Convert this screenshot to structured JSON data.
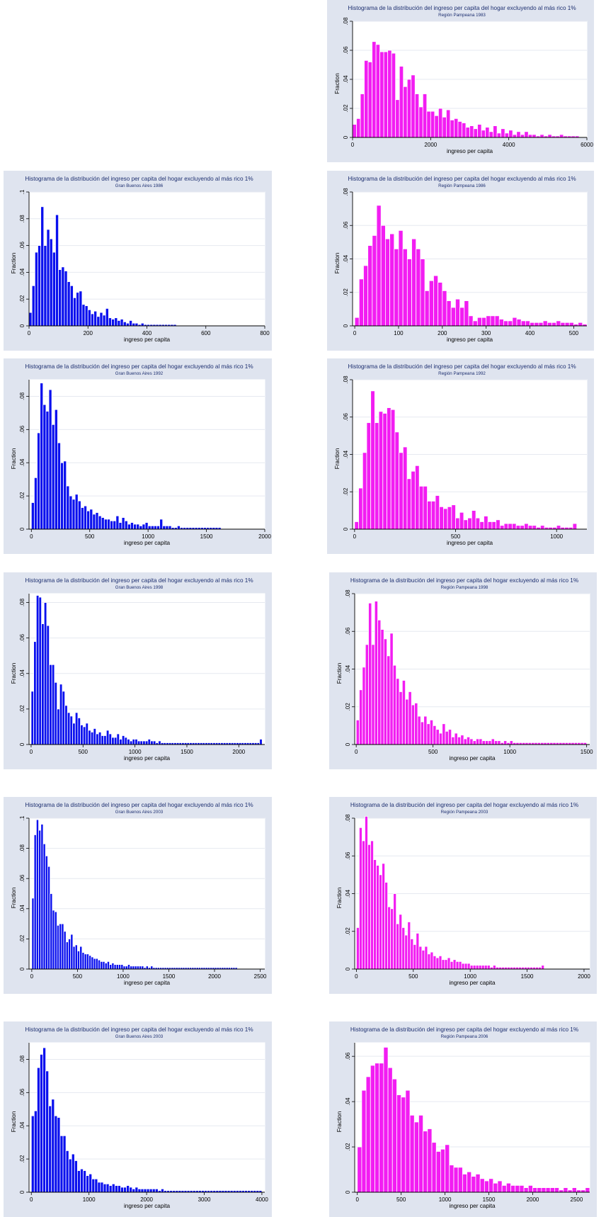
{
  "colors": {
    "blue": "#0a10ee",
    "magenta": "#f21df2",
    "panel_bg": "#dfe4ef",
    "title_text": "#1d2f70"
  },
  "common": {
    "title": "Histograma de la distribución del ingreso per capita del hogar excluyendo al más rico 1%",
    "xlabel": "ingreso per capita",
    "ylabel": "Fraction"
  },
  "chart_data": [
    {
      "id": "p83",
      "type": "bar",
      "color": "magenta",
      "subtitle": "Región Pampeana 1983",
      "xlim": [
        0,
        6000
      ],
      "ylim": [
        0,
        0.08
      ],
      "yticks": [
        0,
        0.02,
        0.04,
        0.06,
        0.08
      ],
      "ytick_labels": [
        "0",
        ".02",
        ".04",
        ".06",
        ".08"
      ],
      "xticks": [
        0,
        2000,
        4000,
        6000
      ],
      "xtick_labels": [
        "0",
        "2000",
        "4000",
        "6000"
      ],
      "bin_width": 100,
      "values": [
        0.009,
        0.013,
        0.03,
        0.053,
        0.052,
        0.066,
        0.064,
        0.059,
        0.059,
        0.06,
        0.058,
        0.026,
        0.049,
        0.035,
        0.04,
        0.043,
        0.03,
        0.021,
        0.03,
        0.018,
        0.018,
        0.015,
        0.02,
        0.014,
        0.019,
        0.012,
        0.013,
        0.011,
        0.01,
        0.007,
        0.008,
        0.006,
        0.009,
        0.005,
        0.007,
        0.004,
        0.008,
        0.003,
        0.006,
        0.003,
        0.005,
        0.002,
        0.004,
        0.002,
        0.004,
        0.002,
        0.002,
        0.001,
        0.002,
        0.001,
        0.002,
        0.001,
        0.001,
        0.002,
        0.001,
        0.001,
        0.001,
        0.001
      ]
    },
    {
      "id": "g86",
      "type": "bar",
      "color": "blue",
      "subtitle": "Gran Buenos Aires 1986",
      "xlim": [
        0,
        800
      ],
      "ylim": [
        0,
        0.1
      ],
      "yticks": [
        0,
        0.02,
        0.04,
        0.06,
        0.08,
        0.1
      ],
      "ytick_labels": [
        "0",
        ".02",
        ".04",
        ".06",
        ".08",
        ".1"
      ],
      "xticks": [
        0,
        200,
        400,
        600,
        800
      ],
      "xtick_labels": [
        "0",
        "200",
        "400",
        "600",
        "800"
      ],
      "bin_width": 10,
      "values": [
        0.01,
        0.03,
        0.055,
        0.06,
        0.089,
        0.06,
        0.072,
        0.065,
        0.055,
        0.083,
        0.042,
        0.044,
        0.041,
        0.033,
        0.03,
        0.021,
        0.025,
        0.026,
        0.016,
        0.015,
        0.012,
        0.009,
        0.011,
        0.007,
        0.01,
        0.008,
        0.013,
        0.006,
        0.005,
        0.006,
        0.004,
        0.005,
        0.003,
        0.002,
        0.004,
        0.002,
        0.002,
        0.001,
        0.002,
        0.001,
        0.001,
        0.001,
        0.001,
        0.001,
        0.001,
        0.001,
        0.001,
        0.001,
        0.001,
        0.001
      ]
    },
    {
      "id": "p86",
      "type": "bar",
      "color": "magenta",
      "subtitle": "Región Pampeana 1986",
      "xlim": [
        -5,
        530
      ],
      "ylim": [
        0,
        0.08
      ],
      "yticks": [
        0,
        0.02,
        0.04,
        0.06,
        0.08
      ],
      "ytick_labels": [
        "0",
        ".02",
        ".04",
        ".06",
        ".08"
      ],
      "xticks": [
        0,
        100,
        200,
        300,
        400,
        500
      ],
      "xtick_labels": [
        "0",
        "100",
        "200",
        "300",
        "400",
        "500"
      ],
      "bin_width": 10,
      "values": [
        0.005,
        0.028,
        0.036,
        0.048,
        0.054,
        0.072,
        0.06,
        0.052,
        0.055,
        0.046,
        0.057,
        0.046,
        0.04,
        0.052,
        0.046,
        0.04,
        0.021,
        0.027,
        0.03,
        0.026,
        0.021,
        0.015,
        0.011,
        0.016,
        0.011,
        0.015,
        0.006,
        0.003,
        0.005,
        0.005,
        0.006,
        0.006,
        0.006,
        0.004,
        0.003,
        0.003,
        0.005,
        0.004,
        0.003,
        0.003,
        0.002,
        0.002,
        0.002,
        0.003,
        0.002,
        0.002,
        0.003,
        0.002,
        0.002,
        0.002,
        0.001,
        0.002,
        0.001
      ]
    },
    {
      "id": "g92",
      "type": "bar",
      "color": "blue",
      "subtitle": "Gran Buenos Aires 1992",
      "xlim": [
        -20,
        2000
      ],
      "ylim": [
        0,
        0.09
      ],
      "yticks": [
        0,
        0.02,
        0.04,
        0.06,
        0.08
      ],
      "ytick_labels": [
        "0",
        ".02",
        ".04",
        ".06",
        ".08"
      ],
      "xticks": [
        0,
        500,
        1000,
        1500,
        2000
      ],
      "xtick_labels": [
        "0",
        "500",
        "1000",
        "1500",
        "2000"
      ],
      "bin_width": 25,
      "values": [
        0.016,
        0.031,
        0.058,
        0.088,
        0.075,
        0.071,
        0.084,
        0.063,
        0.072,
        0.052,
        0.04,
        0.041,
        0.026,
        0.02,
        0.018,
        0.021,
        0.017,
        0.013,
        0.014,
        0.011,
        0.012,
        0.009,
        0.01,
        0.008,
        0.007,
        0.006,
        0.006,
        0.005,
        0.005,
        0.008,
        0.004,
        0.007,
        0.005,
        0.003,
        0.004,
        0.003,
        0.003,
        0.002,
        0.003,
        0.004,
        0.002,
        0.002,
        0.002,
        0.002,
        0.006,
        0.002,
        0.002,
        0.002,
        0.001,
        0.001,
        0.002,
        0.001,
        0.001,
        0.001,
        0.001,
        0.001,
        0.001,
        0.001,
        0.001,
        0.001,
        0.001,
        0.001,
        0.001,
        0.001,
        0.001
      ]
    },
    {
      "id": "p92",
      "type": "bar",
      "color": "magenta",
      "subtitle": "Región Pampeana 1992",
      "xlim": [
        -10,
        1150
      ],
      "ylim": [
        0,
        0.08
      ],
      "yticks": [
        0,
        0.02,
        0.04,
        0.06,
        0.08
      ],
      "ytick_labels": [
        "0",
        ".02",
        ".04",
        ".06",
        ".08"
      ],
      "xticks": [
        0,
        500,
        1000
      ],
      "xtick_labels": [
        "0",
        "500",
        "1000"
      ],
      "bin_width": 20,
      "values": [
        0.004,
        0.022,
        0.041,
        0.057,
        0.074,
        0.057,
        0.063,
        0.062,
        0.065,
        0.064,
        0.052,
        0.041,
        0.044,
        0.027,
        0.031,
        0.034,
        0.023,
        0.023,
        0.015,
        0.015,
        0.018,
        0.012,
        0.011,
        0.012,
        0.013,
        0.006,
        0.009,
        0.005,
        0.006,
        0.01,
        0.006,
        0.004,
        0.007,
        0.004,
        0.004,
        0.005,
        0.002,
        0.003,
        0.003,
        0.003,
        0.002,
        0.002,
        0.003,
        0.002,
        0.002,
        0.001,
        0.002,
        0.001,
        0.001,
        0.001,
        0.002,
        0.001,
        0.001,
        0.001,
        0.003
      ]
    },
    {
      "id": "g98",
      "type": "bar",
      "color": "blue",
      "subtitle": "Gran Buenos Aires 1998",
      "xlim": [
        -20,
        2250
      ],
      "ylim": [
        0,
        0.085
      ],
      "yticks": [
        0,
        0.02,
        0.04,
        0.06,
        0.08
      ],
      "ytick_labels": [
        "0",
        ".02",
        ".04",
        ".06",
        ".08"
      ],
      "xticks": [
        0,
        500,
        1000,
        1500,
        2000
      ],
      "xtick_labels": [
        "0",
        "500",
        "1000",
        "1500",
        "2000"
      ],
      "bin_width": 25,
      "values": [
        0.03,
        0.058,
        0.084,
        0.083,
        0.068,
        0.08,
        0.067,
        0.045,
        0.045,
        0.035,
        0.02,
        0.034,
        0.03,
        0.022,
        0.018,
        0.016,
        0.012,
        0.018,
        0.015,
        0.011,
        0.01,
        0.012,
        0.008,
        0.007,
        0.009,
        0.006,
        0.007,
        0.005,
        0.005,
        0.008,
        0.006,
        0.004,
        0.004,
        0.006,
        0.003,
        0.005,
        0.004,
        0.003,
        0.002,
        0.003,
        0.003,
        0.002,
        0.002,
        0.002,
        0.002,
        0.003,
        0.002,
        0.002,
        0.001,
        0.002,
        0.001,
        0.001,
        0.001,
        0.001,
        0.001,
        0.001,
        0.001,
        0.001,
        0.001,
        0.001,
        0.001,
        0.001,
        0.001,
        0.001,
        0.001,
        0.001,
        0.001,
        0.001,
        0.001,
        0.001,
        0.001,
        0.001,
        0.001,
        0.001,
        0.001,
        0.001,
        0.001,
        0.001,
        0.001,
        0.001,
        0.001,
        0.001,
        0.001,
        0.001,
        0.001,
        0.001,
        0.001,
        0.001,
        0.003
      ]
    },
    {
      "id": "p98",
      "type": "bar",
      "color": "magenta",
      "subtitle": "Región Pampeana 1998",
      "xlim": [
        -10,
        1520
      ],
      "ylim": [
        0,
        0.08
      ],
      "yticks": [
        0,
        0.02,
        0.04,
        0.06,
        0.08
      ],
      "ytick_labels": [
        "0",
        ".02",
        ".04",
        ".06",
        ".08"
      ],
      "xticks": [
        0,
        500,
        1000,
        1500
      ],
      "xtick_labels": [
        "0",
        "500",
        "1000",
        "1500"
      ],
      "bin_width": 20,
      "values": [
        0.013,
        0.029,
        0.041,
        0.053,
        0.075,
        0.053,
        0.076,
        0.066,
        0.061,
        0.056,
        0.047,
        0.059,
        0.042,
        0.035,
        0.028,
        0.034,
        0.024,
        0.028,
        0.021,
        0.022,
        0.015,
        0.012,
        0.015,
        0.011,
        0.013,
        0.01,
        0.008,
        0.006,
        0.011,
        0.007,
        0.008,
        0.004,
        0.006,
        0.004,
        0.005,
        0.003,
        0.004,
        0.003,
        0.002,
        0.003,
        0.003,
        0.002,
        0.002,
        0.002,
        0.003,
        0.002,
        0.002,
        0.001,
        0.002,
        0.001,
        0.002,
        0.001,
        0.001,
        0.001,
        0.001,
        0.001,
        0.001,
        0.001,
        0.001,
        0.001,
        0.001,
        0.001,
        0.001,
        0.001,
        0.001,
        0.001,
        0.001,
        0.001,
        0.001,
        0.001,
        0.001,
        0.001,
        0.001,
        0.001,
        0.001
      ]
    },
    {
      "id": "g03a",
      "type": "bar",
      "color": "blue",
      "subtitle": "Gran Buenos Aires 2003",
      "xlim": [
        -30,
        2550
      ],
      "ylim": [
        0,
        0.1
      ],
      "yticks": [
        0,
        0.02,
        0.04,
        0.06,
        0.08,
        0.1
      ],
      "ytick_labels": [
        "0",
        ".02",
        ".04",
        ".06",
        ".08",
        ".1"
      ],
      "xticks": [
        0,
        500,
        1000,
        1500,
        2000,
        2500
      ],
      "xtick_labels": [
        "0",
        "500",
        "1000",
        "1500",
        "2000",
        "2500"
      ],
      "bin_width": 25,
      "values": [
        0.047,
        0.089,
        0.099,
        0.092,
        0.096,
        0.083,
        0.075,
        0.068,
        0.05,
        0.039,
        0.038,
        0.029,
        0.03,
        0.03,
        0.025,
        0.018,
        0.02,
        0.023,
        0.015,
        0.016,
        0.012,
        0.015,
        0.011,
        0.01,
        0.01,
        0.009,
        0.008,
        0.007,
        0.007,
        0.006,
        0.005,
        0.005,
        0.004,
        0.005,
        0.003,
        0.004,
        0.003,
        0.003,
        0.003,
        0.003,
        0.002,
        0.002,
        0.003,
        0.002,
        0.002,
        0.002,
        0.002,
        0.002,
        0.002,
        0.001,
        0.002,
        0.001,
        0.002,
        0.001,
        0.001,
        0.001,
        0.001,
        0.001,
        0.001,
        0.001,
        0.001,
        0.001,
        0.001,
        0.001,
        0.001,
        0.001,
        0.001,
        0.001,
        0.001,
        0.001,
        0.001,
        0.001,
        0.001,
        0.001,
        0.001,
        0.001,
        0.001,
        0.001,
        0.001,
        0.001,
        0.001,
        0.001,
        0.001,
        0.001,
        0.001,
        0.001,
        0.001,
        0.001,
        0.001,
        0.001
      ]
    },
    {
      "id": "p03",
      "type": "bar",
      "color": "magenta",
      "subtitle": "Región Pampeana 2003",
      "xlim": [
        -15,
        2050
      ],
      "ylim": [
        0,
        0.08
      ],
      "yticks": [
        0,
        0.02,
        0.04,
        0.06,
        0.08
      ],
      "ytick_labels": [
        "0",
        ".02",
        ".04",
        ".06",
        ".08"
      ],
      "xticks": [
        0,
        500,
        1000,
        1500,
        2000
      ],
      "xtick_labels": [
        "0",
        "500",
        "1000",
        "1500",
        "2000"
      ],
      "bin_width": 25,
      "values": [
        0.022,
        0.075,
        0.068,
        0.081,
        0.066,
        0.068,
        0.058,
        0.055,
        0.05,
        0.056,
        0.046,
        0.033,
        0.032,
        0.04,
        0.024,
        0.029,
        0.022,
        0.018,
        0.025,
        0.016,
        0.013,
        0.019,
        0.012,
        0.01,
        0.012,
        0.008,
        0.009,
        0.007,
        0.006,
        0.007,
        0.005,
        0.005,
        0.006,
        0.004,
        0.005,
        0.004,
        0.004,
        0.003,
        0.003,
        0.003,
        0.002,
        0.002,
        0.002,
        0.002,
        0.002,
        0.002,
        0.002,
        0.001,
        0.002,
        0.001,
        0.001,
        0.001,
        0.001,
        0.001,
        0.001,
        0.001,
        0.001,
        0.001,
        0.001,
        0.001,
        0.001,
        0.001,
        0.001,
        0.001,
        0.001,
        0.002
      ]
    },
    {
      "id": "g03b",
      "type": "bar",
      "color": "blue",
      "subtitle": "Gran Buenos Aires 2003",
      "xlim": [
        -40,
        4050
      ],
      "ylim": [
        0,
        0.09
      ],
      "yticks": [
        0,
        0.02,
        0.04,
        0.06,
        0.08
      ],
      "ytick_labels": [
        "0",
        ".02",
        ".04",
        ".06",
        ".08"
      ],
      "xticks": [
        0,
        1000,
        2000,
        3000,
        4000
      ],
      "xtick_labels": [
        "0",
        "1000",
        "2000",
        "3000",
        "4000"
      ],
      "bin_width": 50,
      "values": [
        0.046,
        0.049,
        0.075,
        0.083,
        0.087,
        0.073,
        0.052,
        0.056,
        0.046,
        0.045,
        0.034,
        0.034,
        0.025,
        0.02,
        0.023,
        0.019,
        0.013,
        0.014,
        0.013,
        0.01,
        0.011,
        0.008,
        0.008,
        0.006,
        0.006,
        0.005,
        0.005,
        0.004,
        0.005,
        0.004,
        0.004,
        0.003,
        0.003,
        0.004,
        0.003,
        0.002,
        0.003,
        0.002,
        0.002,
        0.002,
        0.002,
        0.002,
        0.002,
        0.002,
        0.001,
        0.002,
        0.001,
        0.001,
        0.001,
        0.001,
        0.001,
        0.001,
        0.001,
        0.001,
        0.001,
        0.001,
        0.001,
        0.001,
        0.001,
        0.001,
        0.001,
        0.001,
        0.001,
        0.001,
        0.001,
        0.001,
        0.001,
        0.001,
        0.001,
        0.001,
        0.001,
        0.001,
        0.001,
        0.001,
        0.001,
        0.001,
        0.001,
        0.001,
        0.001,
        0.001
      ]
    },
    {
      "id": "p06",
      "type": "bar",
      "color": "magenta",
      "subtitle": "Región Pampeana 2006",
      "xlim": [
        -30,
        2650
      ],
      "ylim": [
        0,
        0.066
      ],
      "yticks": [
        0,
        0.02,
        0.04,
        0.06
      ],
      "ytick_labels": [
        "0",
        ".02",
        ".04",
        ".06"
      ],
      "xticks": [
        0,
        500,
        1000,
        1500,
        2000,
        2500
      ],
      "xtick_labels": [
        "0",
        "500",
        "1000",
        "1500",
        "2000",
        "2500"
      ],
      "bin_width": 50,
      "values": [
        0.02,
        0.045,
        0.051,
        0.056,
        0.057,
        0.057,
        0.064,
        0.055,
        0.05,
        0.043,
        0.042,
        0.045,
        0.034,
        0.031,
        0.034,
        0.027,
        0.028,
        0.022,
        0.018,
        0.019,
        0.021,
        0.012,
        0.011,
        0.011,
        0.008,
        0.009,
        0.007,
        0.008,
        0.006,
        0.005,
        0.006,
        0.004,
        0.005,
        0.003,
        0.004,
        0.003,
        0.003,
        0.003,
        0.002,
        0.003,
        0.002,
        0.002,
        0.002,
        0.002,
        0.002,
        0.002,
        0.001,
        0.002,
        0.001,
        0.002,
        0.001,
        0.001,
        0.002
      ]
    }
  ]
}
